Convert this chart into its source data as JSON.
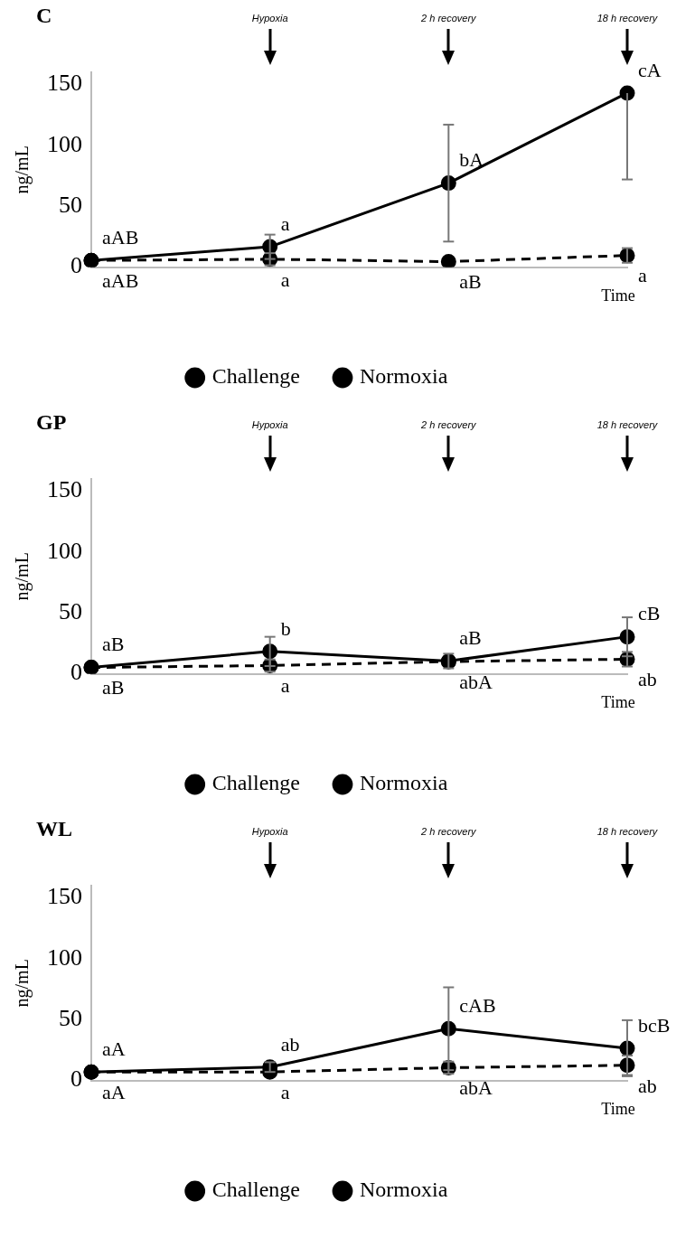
{
  "chart_data": [
    {
      "type": "line",
      "title": "C",
      "xlabel": "Time",
      "ylabel": "ng/mL",
      "categories": [
        null,
        null,
        null,
        null
      ],
      "ylim": [
        0,
        160
      ],
      "yticks": [
        0,
        50,
        100,
        150
      ],
      "grid": false,
      "legend": "bottom",
      "marker": "circle",
      "annotations": [
        "Hypoxia",
        "2 h recovery",
        "18 h recovery"
      ],
      "series": [
        {
          "name": "Challenge",
          "color": "#000000",
          "line_style": "solid",
          "values": [
            5.5,
            16.7,
            69,
            143
          ],
          "errors": [
            null,
            10,
            48,
            [
              72,
              143
            ]
          ],
          "value_labels": [
            "aAB",
            "a",
            "bA",
            "cA"
          ]
        },
        {
          "name": "Normoxia",
          "color": "#000000",
          "line_style": "dashed",
          "values": [
            5.5,
            6.5,
            4.5,
            9.6
          ],
          "errors": [
            null,
            5,
            null,
            6
          ],
          "value_labels": [
            "aAB",
            "a",
            "aB",
            "a"
          ]
        }
      ]
    },
    {
      "type": "line",
      "title": "GP",
      "xlabel": "Time",
      "ylabel": "ng/mL",
      "categories": [
        null,
        null,
        null,
        null
      ],
      "ylim": [
        0,
        160
      ],
      "yticks": [
        0,
        50,
        100,
        150
      ],
      "grid": false,
      "legend": "bottom",
      "marker": "circle",
      "annotations": [
        "Hypoxia",
        "2 h recovery",
        "18 h recovery"
      ],
      "series": [
        {
          "name": "Challenge",
          "color": "#000000",
          "line_style": "solid",
          "values": [
            5.2,
            18.4,
            10.5,
            30.4
          ],
          "errors": [
            null,
            12,
            6,
            16
          ],
          "value_labels": [
            "aB",
            "b",
            "aB",
            "cB"
          ]
        },
        {
          "name": "Normoxia",
          "color": "#000000",
          "line_style": "dashed",
          "values": [
            5.2,
            6.8,
            10,
            12
          ],
          "errors": [
            null,
            5,
            null,
            6
          ],
          "value_labels": [
            "aB",
            "a",
            "abA",
            "ab"
          ]
        }
      ]
    },
    {
      "type": "line",
      "title": "WL",
      "xlabel": "Time",
      "ylabel": "ng/mL",
      "categories": [
        null,
        null,
        null,
        null
      ],
      "ylim": [
        0,
        160
      ],
      "yticks": [
        0,
        50,
        100,
        150
      ],
      "grid": false,
      "legend": "bottom",
      "marker": "circle",
      "annotations": [
        "Hypoxia",
        "2 h recovery",
        "18 h recovery"
      ],
      "series": [
        {
          "name": "Challenge",
          "color": "#000000",
          "line_style": "solid",
          "values": [
            7,
            11,
            42.5,
            26.5
          ],
          "errors": [
            null,
            4,
            34,
            23
          ],
          "value_labels": [
            "aA",
            "ab",
            "cAB",
            "bcB"
          ]
        },
        {
          "name": "Normoxia",
          "color": "#000000",
          "line_style": "dashed",
          "values": [
            7,
            7,
            10.5,
            12.5
          ],
          "errors": [
            null,
            null,
            5,
            8
          ],
          "value_labels": [
            "aA",
            "a",
            "abA",
            "ab"
          ]
        }
      ]
    }
  ]
}
